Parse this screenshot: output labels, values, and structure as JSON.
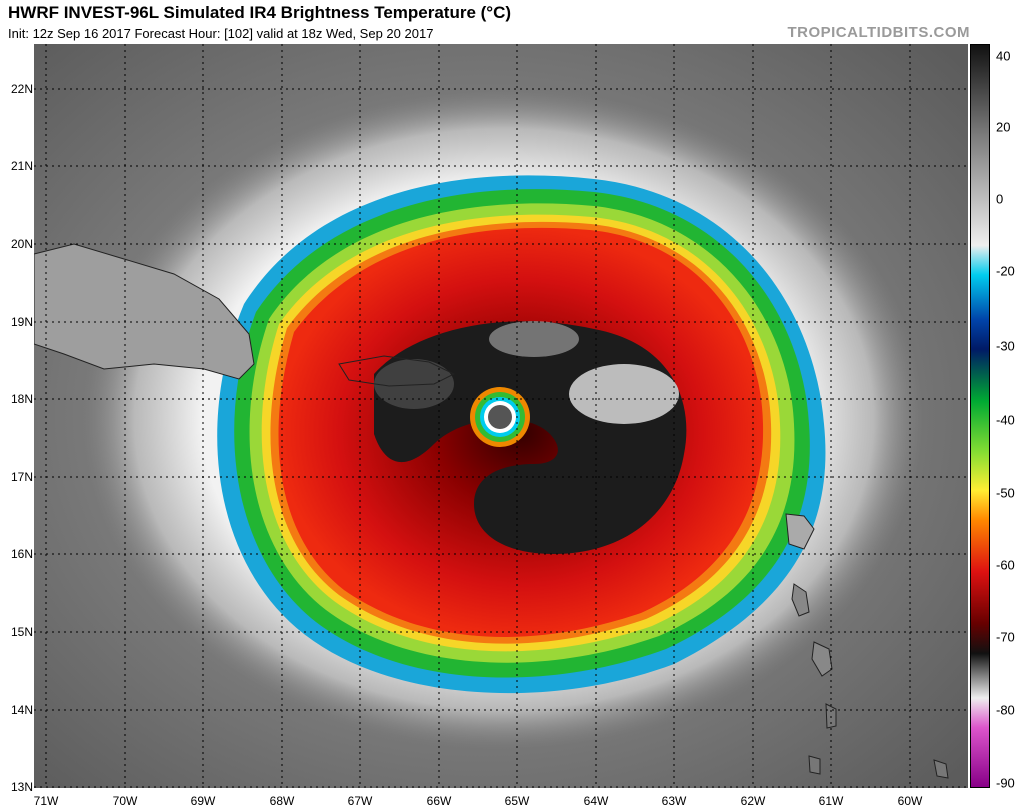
{
  "header": {
    "title": "HWRF INVEST-96L Simulated IR4 Brightness Temperature (°C)",
    "subtitle": "Init: 12z Sep 16 2017   Forecast Hour: [102]   valid at 18z Wed, Sep 20 2017",
    "brand": "TROPICALTIDBITS.COM"
  },
  "map": {
    "lat_labels": [
      "22N",
      "21N",
      "20N",
      "19N",
      "18N",
      "17N",
      "16N",
      "15N",
      "14N",
      "13N"
    ],
    "lon_labels": [
      "71W",
      "70W",
      "69W",
      "68W",
      "67W",
      "66W",
      "65W",
      "64W",
      "63W",
      "62W",
      "61W",
      "60W"
    ]
  },
  "colorbar": {
    "labels": [
      "40",
      "20",
      "0",
      "-20",
      "-30",
      "-40",
      "-50",
      "-60",
      "-70",
      "-80",
      "-90"
    ],
    "colors": {
      "dark": "#111111",
      "gray": "#7a7a7a",
      "light": "#eeeeee",
      "cyan": "#00ccee",
      "blue": "#0044aa",
      "navy": "#001a66",
      "green": "#00aa33",
      "lime": "#88dd33",
      "yellow": "#ffee33",
      "orange": "#ff8800",
      "red": "#dd1111",
      "darkred": "#660000",
      "magenta": "#dd55cc",
      "purple": "#880088"
    }
  }
}
